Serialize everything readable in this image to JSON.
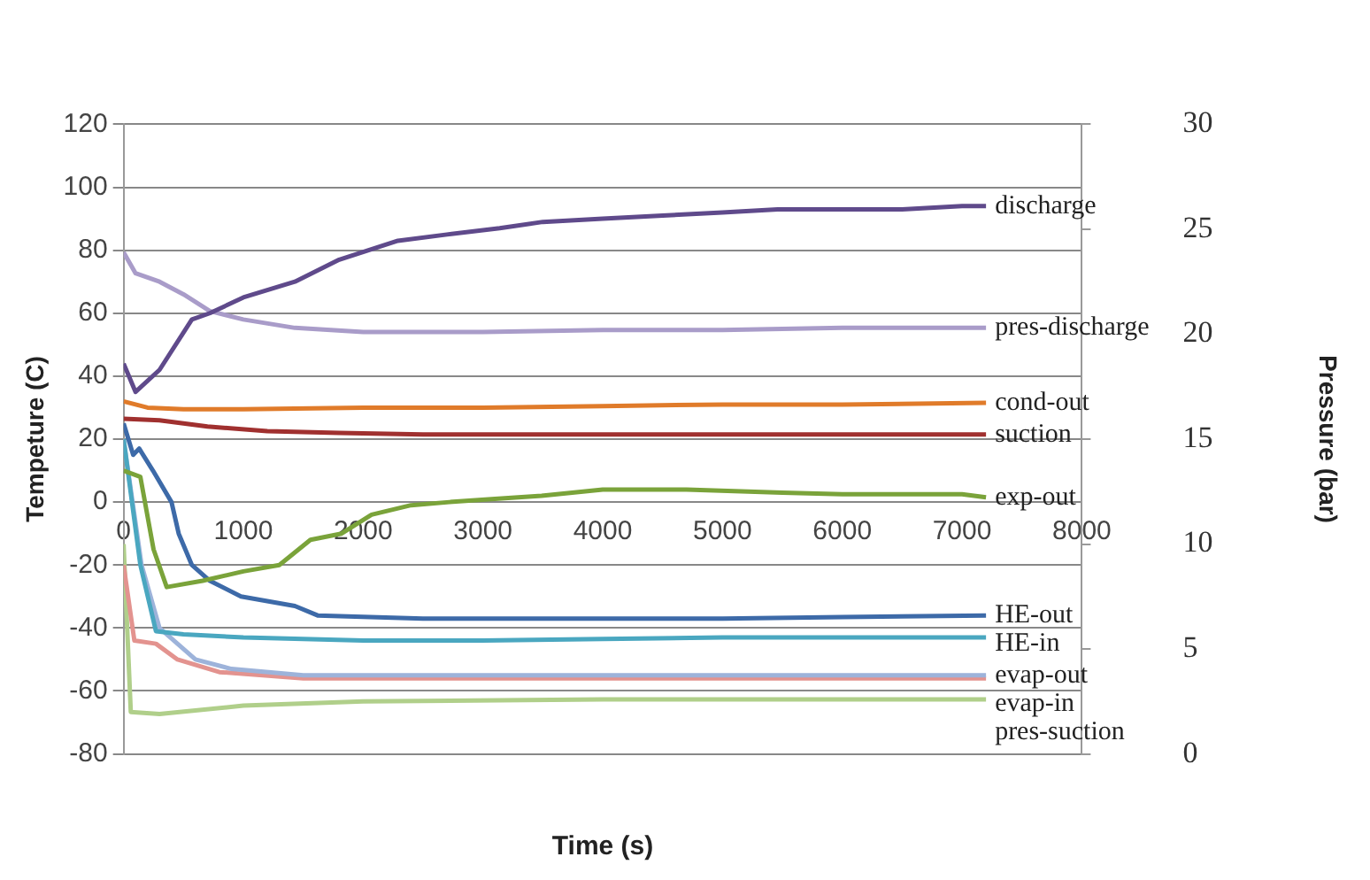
{
  "chart_data": {
    "type": "line",
    "xlabel": "Time (s)",
    "ylabel": "Tempeture (C)",
    "y2label": "Pressure (bar)",
    "xlim": [
      0,
      8000
    ],
    "xticks": [
      0,
      1000,
      2000,
      3000,
      4000,
      5000,
      6000,
      7000,
      8000
    ],
    "ylim": [
      -80,
      120
    ],
    "yticks": [
      -80,
      -60,
      -40,
      -20,
      0,
      20,
      40,
      60,
      80,
      100,
      120
    ],
    "y2lim": [
      0,
      30
    ],
    "y2ticks": [
      0,
      5,
      10,
      15,
      20,
      25,
      30
    ],
    "grid": "y",
    "legend": false,
    "series": [
      {
        "name": "discharge",
        "color": "#5f4a8b",
        "x": [
          0,
          100,
          300,
          570,
          720,
          1000,
          1430,
          1800,
          2290,
          2700,
          3140,
          3500,
          4000,
          4500,
          5000,
          5460,
          6000,
          6500,
          7000,
          7200
        ],
        "values": [
          44,
          35,
          42,
          58,
          60,
          65,
          70,
          77,
          83,
          85,
          87,
          89,
          90,
          91,
          92,
          93,
          93,
          93,
          94,
          94
        ]
      },
      {
        "name": "pres-discharge",
        "axis": "y2",
        "color": "#a99cc9",
        "x": [
          0,
          100,
          300,
          500,
          720,
          1000,
          1430,
          2000,
          2500,
          3000,
          4000,
          5000,
          6000,
          7000,
          7200
        ],
        "values": [
          23.9,
          22.9,
          22.5,
          21.9,
          21.1,
          20.7,
          20.3,
          20.1,
          20.1,
          20.1,
          20.2,
          20.2,
          20.3,
          20.3,
          20.3
        ]
      },
      {
        "name": "cond-out",
        "color": "#e07b2a",
        "x": [
          0,
          200,
          500,
          1000,
          2000,
          3000,
          4000,
          5000,
          6000,
          7200
        ],
        "values": [
          32,
          30,
          29.5,
          29.5,
          30,
          30,
          30.5,
          31,
          31,
          31.5
        ]
      },
      {
        "name": "suction",
        "color": "#a0302f",
        "x": [
          0,
          300,
          700,
          1200,
          1800,
          2500,
          4000,
          5500,
          7200
        ],
        "values": [
          26.5,
          26,
          24,
          22.5,
          22,
          21.5,
          21.5,
          21.5,
          21.5
        ]
      },
      {
        "name": "exp-out",
        "color": "#7aa33a",
        "x": [
          0,
          140,
          250,
          360,
          660,
          1000,
          1300,
          1560,
          1820,
          2070,
          2400,
          2720,
          3100,
          3490,
          4000,
          4700,
          5500,
          6000,
          6500,
          7000,
          7200
        ],
        "values": [
          10,
          8,
          -15,
          -27,
          -25,
          -22,
          -20,
          -12,
          -10,
          -4,
          -1,
          0,
          1,
          2,
          4,
          4,
          3,
          2.5,
          2.5,
          2.5,
          1.5
        ]
      },
      {
        "name": "HE-out",
        "color": "#3d6aa8",
        "x": [
          0,
          80,
          130,
          245,
          400,
          460,
          570,
          720,
          980,
          1430,
          1620,
          2500,
          3500,
          5000,
          6000,
          7200
        ],
        "values": [
          25,
          15,
          17,
          10,
          0,
          -10,
          -20,
          -25,
          -30,
          -33,
          -36,
          -37,
          -37,
          -37,
          -36.5,
          -36
        ]
      },
      {
        "name": "HE-in",
        "color": "#4aa7c0",
        "x": [
          0,
          140,
          270,
          500,
          1000,
          2000,
          3000,
          4000,
          5000,
          6000,
          7200
        ],
        "values": [
          20,
          -20,
          -41,
          -42,
          -43,
          -44,
          -44,
          -43.5,
          -43,
          -43,
          -43
        ]
      },
      {
        "name": "evap-out",
        "color": "#9db3da",
        "x": [
          0,
          150,
          300,
          600,
          900,
          1500,
          3000,
          5000,
          7200
        ],
        "values": [
          20,
          -20,
          -40,
          -50,
          -53,
          -55,
          -55,
          -55,
          -55
        ]
      },
      {
        "name": "evap-in",
        "color": "#e3938f",
        "x": [
          0,
          90,
          270,
          450,
          800,
          1500,
          3000,
          5000,
          7200
        ],
        "values": [
          -20,
          -44,
          -45,
          -50,
          -54,
          -56,
          -56,
          -56,
          -56
        ]
      },
      {
        "name": "pres-suction",
        "axis": "y2",
        "color": "#b0cf8a",
        "x": [
          0,
          60,
          300,
          1000,
          2000,
          4000,
          5500,
          7200
        ],
        "values": [
          10,
          2,
          1.9,
          2.3,
          2.5,
          2.6,
          2.6,
          2.6
        ]
      }
    ]
  }
}
